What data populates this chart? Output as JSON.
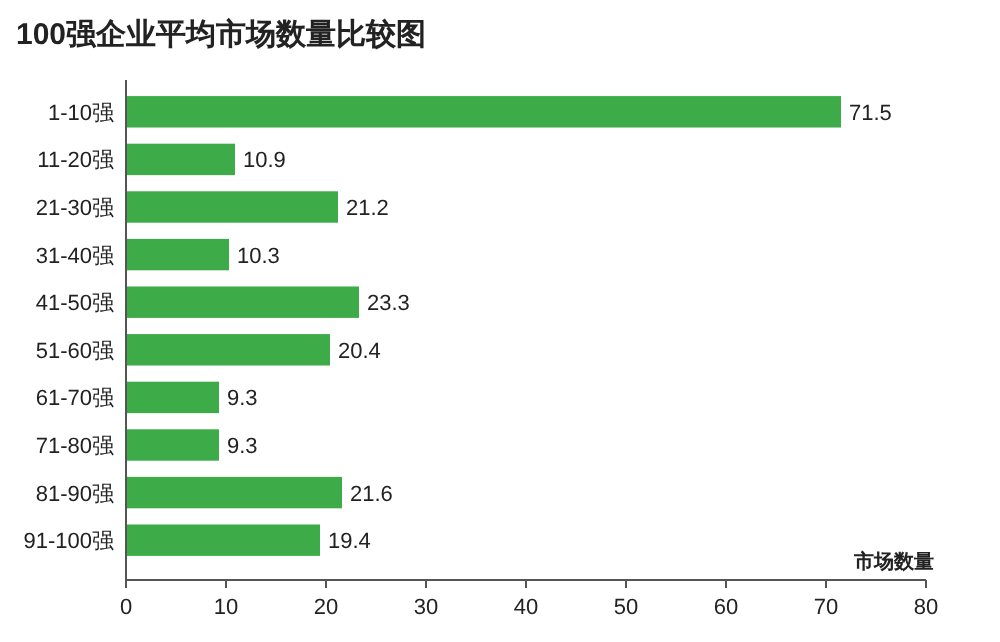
{
  "chart_data": {
    "type": "bar",
    "orientation": "horizontal",
    "title": "100强企业平均市场数量比较图",
    "xlabel": "市场数量",
    "categories": [
      "1-10强",
      "11-20强",
      "21-30强",
      "31-40强",
      "41-50强",
      "51-60强",
      "61-70强",
      "71-80强",
      "81-90强",
      "91-100强"
    ],
    "values": [
      71.5,
      10.9,
      21.2,
      10.3,
      23.3,
      20.4,
      9.3,
      9.3,
      21.6,
      19.4
    ],
    "color": "#3dab47",
    "xlim": [
      0,
      80
    ],
    "xticks": [
      0,
      10,
      20,
      30,
      40,
      50,
      60,
      70,
      80
    ],
    "data_labels": true,
    "grid": false
  }
}
